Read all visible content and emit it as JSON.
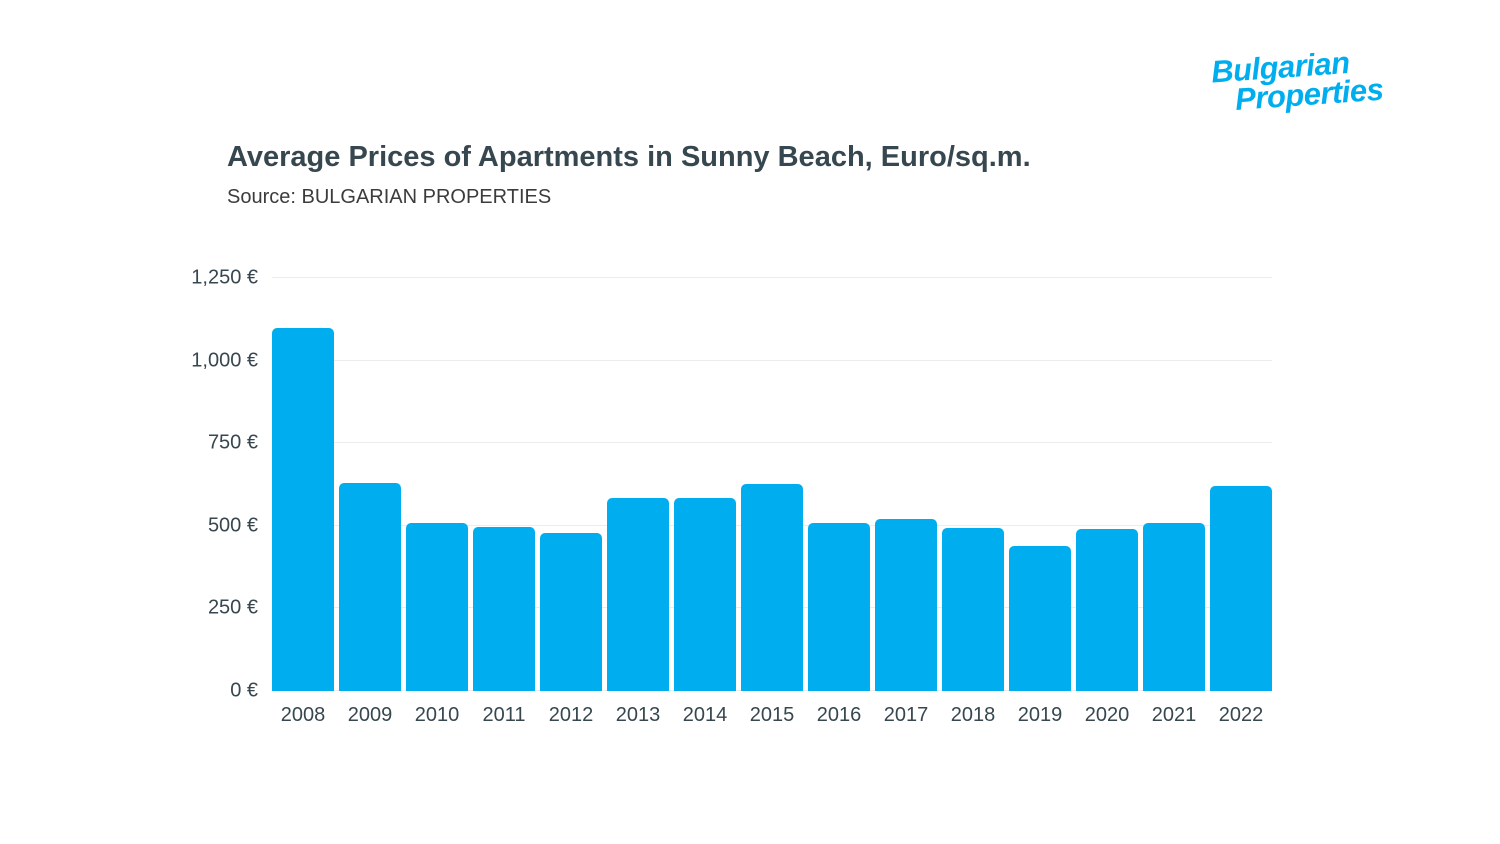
{
  "logo": {
    "line1": "Bulgarian",
    "line2": "Properties",
    "color": "#00aeef"
  },
  "header": {
    "title": "Average Prices of Apartments in Sunny Beach, Euro/sq.m.",
    "subtitle": "Source: BULGARIAN PROPERTIES"
  },
  "chart_data": {
    "type": "bar",
    "title": "Average Prices of Apartments in Sunny Beach, Euro/sq.m.",
    "source_note": "Source: BULGARIAN PROPERTIES",
    "categories": [
      "2008",
      "2009",
      "2010",
      "2011",
      "2012",
      "2013",
      "2014",
      "2015",
      "2016",
      "2017",
      "2018",
      "2019",
      "2020",
      "2021",
      "2022"
    ],
    "values": [
      1100,
      630,
      510,
      495,
      478,
      585,
      585,
      626,
      510,
      522,
      492,
      438,
      490,
      510,
      620
    ],
    "ylabel": "",
    "xlabel": "",
    "ylim": [
      0,
      1250
    ],
    "yticks": [
      0,
      250,
      500,
      750,
      1000,
      1250
    ],
    "ytick_suffix": " €",
    "bar_color": "#00aeef",
    "grid": true,
    "legend": false
  }
}
